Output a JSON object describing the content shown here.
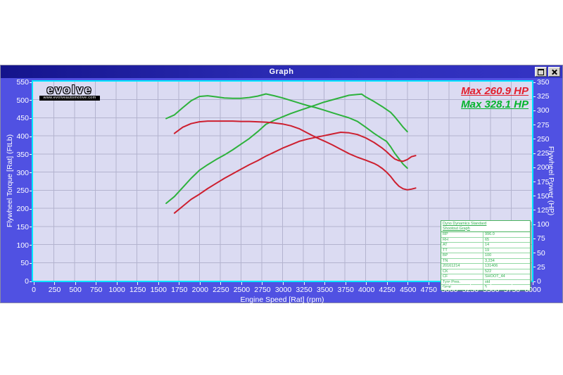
{
  "window": {
    "title": "Graph"
  },
  "logo": {
    "brand": "evolve",
    "url_text": "www.evolveautomotive.com"
  },
  "legend": [
    {
      "label": "Max 260.9 HP",
      "color": "#e3202e"
    },
    {
      "label": "Max 328.1 HP",
      "color": "#04b42c"
    }
  ],
  "info_table": {
    "header_line1": "Dyno Dynamics Standard",
    "header_line2": "Shootout Graph",
    "rows": [
      [
        "RP",
        "996.0"
      ],
      [
        "RH",
        "65"
      ],
      [
        "AT",
        "14"
      ],
      [
        "TT",
        "19"
      ],
      [
        "BP",
        "100"
      ],
      [
        "TN",
        "3,234"
      ],
      [
        "20161214",
        "131406"
      ],
      [
        "CK",
        "522"
      ],
      [
        "CF",
        "SHOOT_44"
      ],
      [
        "Tyre Pres.",
        "std"
      ],
      [
        "Gear",
        "5"
      ]
    ]
  },
  "chart_data": {
    "type": "line",
    "title": "",
    "xlabel": "Engine Speed [Rat] (rpm)",
    "ylabel_left": "Flywheel Torque [Rat] (FtLb)",
    "ylabel_right": "Flywheel Power (HP)",
    "x_range": [
      0,
      6000
    ],
    "x_tick_step": 250,
    "y_left_range": [
      0,
      550
    ],
    "y_left_tick_step": 50,
    "y_right_range": [
      0,
      350
    ],
    "y_right_tick_step": 25,
    "grid": true,
    "legend_position": "top-right",
    "colors": {
      "grid": "#b3b3cf",
      "plot_bg": "#dbdbf2",
      "frame": "#00e6ff",
      "red": "#cd1f2f",
      "green": "#2db23c"
    },
    "series": [
      {
        "name": "green-torque",
        "axis": "left",
        "color": "#2db23c",
        "max": 516,
        "points": [
          [
            1600,
            448
          ],
          [
            1700,
            458
          ],
          [
            1800,
            478
          ],
          [
            1900,
            497
          ],
          [
            2000,
            509
          ],
          [
            2100,
            511
          ],
          [
            2200,
            508
          ],
          [
            2300,
            505
          ],
          [
            2400,
            504
          ],
          [
            2500,
            504
          ],
          [
            2600,
            506
          ],
          [
            2700,
            510
          ],
          [
            2800,
            516
          ],
          [
            2900,
            511
          ],
          [
            3000,
            505
          ],
          [
            3100,
            498
          ],
          [
            3200,
            491
          ],
          [
            3300,
            484
          ],
          [
            3400,
            478
          ],
          [
            3500,
            471
          ],
          [
            3600,
            464
          ],
          [
            3700,
            457
          ],
          [
            3800,
            450
          ],
          [
            3900,
            440
          ],
          [
            4000,
            424
          ],
          [
            4100,
            407
          ],
          [
            4200,
            392
          ],
          [
            4250,
            385
          ],
          [
            4300,
            370
          ],
          [
            4350,
            352
          ],
          [
            4400,
            337
          ],
          [
            4450,
            322
          ],
          [
            4500,
            311
          ]
        ]
      },
      {
        "name": "green-power",
        "axis": "right",
        "color": "#2db23c",
        "max": 328.1,
        "points": [
          [
            1600,
            136
          ],
          [
            1700,
            148
          ],
          [
            1800,
            164
          ],
          [
            1900,
            180
          ],
          [
            2000,
            194
          ],
          [
            2100,
            204
          ],
          [
            2200,
            213
          ],
          [
            2300,
            221
          ],
          [
            2400,
            230
          ],
          [
            2500,
            240
          ],
          [
            2600,
            250
          ],
          [
            2700,
            262
          ],
          [
            2800,
            275
          ],
          [
            2900,
            282
          ],
          [
            3000,
            288
          ],
          [
            3100,
            294
          ],
          [
            3200,
            299
          ],
          [
            3300,
            304
          ],
          [
            3400,
            309
          ],
          [
            3500,
            314
          ],
          [
            3600,
            318
          ],
          [
            3700,
            322
          ],
          [
            3800,
            326
          ],
          [
            3900,
            327.5
          ],
          [
            3950,
            328.1
          ],
          [
            4000,
            323
          ],
          [
            4100,
            315
          ],
          [
            4200,
            306
          ],
          [
            4300,
            296
          ],
          [
            4350,
            288
          ],
          [
            4400,
            279
          ],
          [
            4450,
            270
          ],
          [
            4500,
            262
          ]
        ]
      },
      {
        "name": "red-torque",
        "axis": "left",
        "color": "#cd1f2f",
        "max": 441,
        "points": [
          [
            1700,
            407
          ],
          [
            1800,
            424
          ],
          [
            1900,
            434
          ],
          [
            2000,
            439
          ],
          [
            2100,
            441
          ],
          [
            2200,
            441
          ],
          [
            2300,
            441
          ],
          [
            2400,
            441
          ],
          [
            2500,
            440
          ],
          [
            2600,
            440
          ],
          [
            2700,
            439
          ],
          [
            2800,
            438
          ],
          [
            2900,
            436
          ],
          [
            3000,
            433
          ],
          [
            3100,
            428
          ],
          [
            3200,
            420
          ],
          [
            3300,
            408
          ],
          [
            3400,
            396
          ],
          [
            3500,
            386
          ],
          [
            3600,
            375
          ],
          [
            3700,
            363
          ],
          [
            3800,
            351
          ],
          [
            3900,
            341
          ],
          [
            4000,
            333
          ],
          [
            4100,
            324
          ],
          [
            4150,
            318
          ],
          [
            4200,
            310
          ],
          [
            4250,
            300
          ],
          [
            4300,
            288
          ],
          [
            4350,
            273
          ],
          [
            4400,
            261
          ],
          [
            4450,
            254
          ],
          [
            4500,
            251
          ],
          [
            4550,
            253
          ],
          [
            4600,
            256
          ]
        ]
      },
      {
        "name": "red-power",
        "axis": "right",
        "color": "#cd1f2f",
        "max": 260.9,
        "points": [
          [
            1700,
            119
          ],
          [
            1800,
            131
          ],
          [
            1900,
            143
          ],
          [
            2000,
            152
          ],
          [
            2100,
            162
          ],
          [
            2200,
            171
          ],
          [
            2300,
            180
          ],
          [
            2400,
            188
          ],
          [
            2500,
            196
          ],
          [
            2600,
            204
          ],
          [
            2700,
            211
          ],
          [
            2800,
            219
          ],
          [
            2900,
            226
          ],
          [
            3000,
            233
          ],
          [
            3100,
            239
          ],
          [
            3200,
            245
          ],
          [
            3300,
            249
          ],
          [
            3400,
            252
          ],
          [
            3500,
            255
          ],
          [
            3600,
            258
          ],
          [
            3700,
            260.9
          ],
          [
            3800,
            260
          ],
          [
            3900,
            257
          ],
          [
            4000,
            251
          ],
          [
            4100,
            243
          ],
          [
            4200,
            233
          ],
          [
            4250,
            227
          ],
          [
            4300,
            220
          ],
          [
            4350,
            214
          ],
          [
            4400,
            211
          ],
          [
            4450,
            210
          ],
          [
            4500,
            213
          ],
          [
            4550,
            218
          ],
          [
            4600,
            220
          ]
        ]
      }
    ]
  }
}
